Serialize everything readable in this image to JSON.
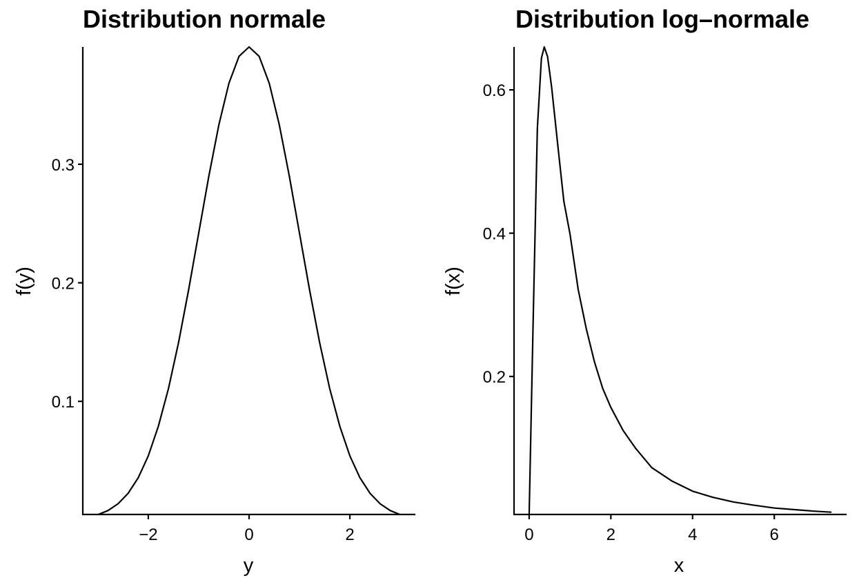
{
  "chart_data": [
    {
      "type": "line",
      "title": "Distribution normale",
      "xlabel": "y",
      "ylabel": "f(y)",
      "xlim": [
        -3.3,
        3.3
      ],
      "ylim": [
        0.0046,
        0.3989
      ],
      "xticks": [
        -2,
        0,
        2
      ],
      "xtick_labels": [
        "−2",
        "0",
        "2"
      ],
      "yticks": [
        0.1,
        0.2,
        0.3
      ],
      "ytick_labels": [
        "0.1",
        "0.2",
        "0.3"
      ],
      "grid": false,
      "series": [
        {
          "x": [
            -3.0,
            -2.8,
            -2.6,
            -2.4,
            -2.2,
            -2.0,
            -1.8,
            -1.6,
            -1.4,
            -1.2,
            -1.0,
            -0.8,
            -0.6,
            -0.4,
            -0.2,
            0.0,
            0.2,
            0.4,
            0.6,
            0.8,
            1.0,
            1.2,
            1.4,
            1.6,
            1.8,
            2.0,
            2.2,
            2.4,
            2.6,
            2.8,
            3.0
          ],
          "y": [
            0.0044,
            0.0079,
            0.0136,
            0.0224,
            0.0355,
            0.054,
            0.079,
            0.1109,
            0.1497,
            0.1942,
            0.242,
            0.2897,
            0.3332,
            0.3683,
            0.391,
            0.3989,
            0.391,
            0.3683,
            0.3332,
            0.2897,
            0.242,
            0.1942,
            0.1497,
            0.1109,
            0.079,
            0.054,
            0.0355,
            0.0224,
            0.0136,
            0.0079,
            0.0044
          ]
        }
      ]
    },
    {
      "type": "line",
      "title": "Distribution log–normale",
      "xlabel": "x",
      "ylabel": "f(x)",
      "xlim": [
        -0.37,
        7.77
      ],
      "ylim": [
        0.0074,
        0.6599
      ],
      "xticks": [
        0,
        2,
        4,
        6
      ],
      "xtick_labels": [
        "0",
        "2",
        "4",
        "6"
      ],
      "yticks": [
        0.2,
        0.4,
        0.6
      ],
      "ytick_labels": [
        "0.2",
        "0.4",
        "0.6"
      ],
      "grid": false,
      "series": [
        {
          "x": [
            0.0,
            0.1,
            0.2,
            0.3,
            0.37,
            0.45,
            0.55,
            0.7,
            0.85,
            1.0,
            1.2,
            1.4,
            1.6,
            1.8,
            2.0,
            2.3,
            2.6,
            3.0,
            3.5,
            4.0,
            4.5,
            5.0,
            5.5,
            6.0,
            6.5,
            7.0,
            7.4
          ],
          "y": [
            0.0,
            0.2816,
            0.5463,
            0.6444,
            0.6599,
            0.6464,
            0.6036,
            0.5228,
            0.4444,
            0.3989,
            0.3213,
            0.2662,
            0.2198,
            0.1834,
            0.1569,
            0.1246,
            0.1001,
            0.0727,
            0.0539,
            0.0399,
            0.0313,
            0.0248,
            0.0203,
            0.0164,
            0.0141,
            0.0119,
            0.0106
          ]
        }
      ]
    }
  ]
}
